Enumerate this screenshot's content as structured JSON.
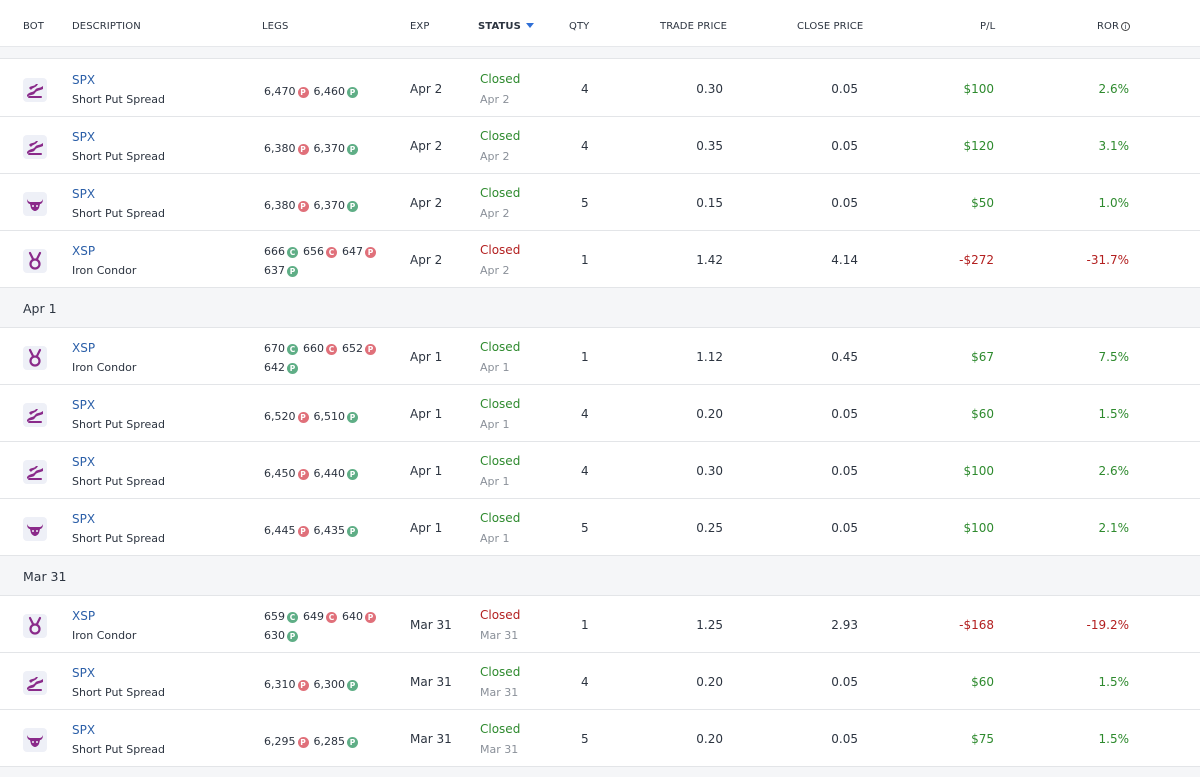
{
  "colors": {
    "symbol": "#2b5fa8",
    "closed_win": "#2e8a2e",
    "closed_loss": "#b32020",
    "pl_gain": "#2e8a2e",
    "pl_loss": "#b32020",
    "put_tag": "#e0707a",
    "put_long_tag": "#5fae86",
    "call_tag": "#e0707a",
    "call_long_tag": "#5fae86",
    "bot_icon": "#8a2a8a"
  },
  "header": {
    "bot": "BOT",
    "description": "DESCRIPTION",
    "legs": "LEGS",
    "exp": "EXP",
    "status": "STATUS",
    "qty": "QTY",
    "trade_price": "TRADE PRICE",
    "close_price": "CLOSE PRICE",
    "pl": "P/L",
    "ror": "ROR"
  },
  "groups": [
    {
      "label": "Apr 1"
    },
    {
      "label": "Mar 31"
    }
  ],
  "rows": [
    {
      "bot_icon": "wave-bot-icon",
      "symbol": "SPX",
      "strategy": "Short Put Spread",
      "legs": [
        {
          "strike": "6,470",
          "tag": "P",
          "short": true
        },
        {
          "strike": "6,460",
          "tag": "P",
          "short": false
        }
      ],
      "exp": "Apr 2",
      "status": "Closed",
      "status_date": "Apr 2",
      "win": true,
      "qty": "4",
      "trade_price": "0.30",
      "close_price": "0.05",
      "pl": "$100",
      "ror": "2.6%"
    },
    {
      "bot_icon": "wave-bot-icon",
      "symbol": "SPX",
      "strategy": "Short Put Spread",
      "legs": [
        {
          "strike": "6,380",
          "tag": "P",
          "short": true
        },
        {
          "strike": "6,370",
          "tag": "P",
          "short": false
        }
      ],
      "exp": "Apr 2",
      "status": "Closed",
      "status_date": "Apr 2",
      "win": true,
      "qty": "4",
      "trade_price": "0.35",
      "close_price": "0.05",
      "pl": "$120",
      "ror": "3.1%"
    },
    {
      "bot_icon": "bull-bot-icon",
      "symbol": "SPX",
      "strategy": "Short Put Spread",
      "legs": [
        {
          "strike": "6,380",
          "tag": "P",
          "short": true
        },
        {
          "strike": "6,370",
          "tag": "P",
          "short": false
        }
      ],
      "exp": "Apr 2",
      "status": "Closed",
      "status_date": "Apr 2",
      "win": true,
      "qty": "5",
      "trade_price": "0.15",
      "close_price": "0.05",
      "pl": "$50",
      "ror": "1.0%"
    },
    {
      "bot_icon": "medal-bot-icon",
      "symbol": "XSP",
      "strategy": "Iron Condor",
      "legs": [
        {
          "strike": "666",
          "tag": "C",
          "short": false
        },
        {
          "strike": "656",
          "tag": "C",
          "short": true
        },
        {
          "strike": "647",
          "tag": "P",
          "short": true
        },
        {
          "strike": "637",
          "tag": "P",
          "short": false
        }
      ],
      "exp": "Apr 2",
      "status": "Closed",
      "status_date": "Apr 2",
      "win": false,
      "qty": "1",
      "trade_price": "1.42",
      "close_price": "4.14",
      "pl": "-$272",
      "ror": "-31.7%"
    },
    {
      "group": "Apr 1"
    },
    {
      "bot_icon": "medal-bot-icon",
      "symbol": "XSP",
      "strategy": "Iron Condor",
      "legs": [
        {
          "strike": "670",
          "tag": "C",
          "short": false
        },
        {
          "strike": "660",
          "tag": "C",
          "short": true
        },
        {
          "strike": "652",
          "tag": "P",
          "short": true
        },
        {
          "strike": "642",
          "tag": "P",
          "short": false
        }
      ],
      "exp": "Apr 1",
      "status": "Closed",
      "status_date": "Apr 1",
      "win": true,
      "qty": "1",
      "trade_price": "1.12",
      "close_price": "0.45",
      "pl": "$67",
      "ror": "7.5%"
    },
    {
      "bot_icon": "wave-bot-icon",
      "symbol": "SPX",
      "strategy": "Short Put Spread",
      "legs": [
        {
          "strike": "6,520",
          "tag": "P",
          "short": true
        },
        {
          "strike": "6,510",
          "tag": "P",
          "short": false
        }
      ],
      "exp": "Apr 1",
      "status": "Closed",
      "status_date": "Apr 1",
      "win": true,
      "qty": "4",
      "trade_price": "0.20",
      "close_price": "0.05",
      "pl": "$60",
      "ror": "1.5%"
    },
    {
      "bot_icon": "wave-bot-icon",
      "symbol": "SPX",
      "strategy": "Short Put Spread",
      "legs": [
        {
          "strike": "6,450",
          "tag": "P",
          "short": true
        },
        {
          "strike": "6,440",
          "tag": "P",
          "short": false
        }
      ],
      "exp": "Apr 1",
      "status": "Closed",
      "status_date": "Apr 1",
      "win": true,
      "qty": "4",
      "trade_price": "0.30",
      "close_price": "0.05",
      "pl": "$100",
      "ror": "2.6%"
    },
    {
      "bot_icon": "bull-bot-icon",
      "symbol": "SPX",
      "strategy": "Short Put Spread",
      "legs": [
        {
          "strike": "6,445",
          "tag": "P",
          "short": true
        },
        {
          "strike": "6,435",
          "tag": "P",
          "short": false
        }
      ],
      "exp": "Apr 1",
      "status": "Closed",
      "status_date": "Apr 1",
      "win": true,
      "qty": "5",
      "trade_price": "0.25",
      "close_price": "0.05",
      "pl": "$100",
      "ror": "2.1%"
    },
    {
      "group": "Mar 31"
    },
    {
      "bot_icon": "medal-bot-icon",
      "symbol": "XSP",
      "strategy": "Iron Condor",
      "legs": [
        {
          "strike": "659",
          "tag": "C",
          "short": false
        },
        {
          "strike": "649",
          "tag": "C",
          "short": true
        },
        {
          "strike": "640",
          "tag": "P",
          "short": true
        },
        {
          "strike": "630",
          "tag": "P",
          "short": false
        }
      ],
      "exp": "Mar 31",
      "status": "Closed",
      "status_date": "Mar 31",
      "win": false,
      "qty": "1",
      "trade_price": "1.25",
      "close_price": "2.93",
      "pl": "-$168",
      "ror": "-19.2%"
    },
    {
      "bot_icon": "wave-bot-icon",
      "symbol": "SPX",
      "strategy": "Short Put Spread",
      "legs": [
        {
          "strike": "6,310",
          "tag": "P",
          "short": true
        },
        {
          "strike": "6,300",
          "tag": "P",
          "short": false
        }
      ],
      "exp": "Mar 31",
      "status": "Closed",
      "status_date": "Mar 31",
      "win": true,
      "qty": "4",
      "trade_price": "0.20",
      "close_price": "0.05",
      "pl": "$60",
      "ror": "1.5%"
    },
    {
      "bot_icon": "bull-bot-icon",
      "symbol": "SPX",
      "strategy": "Short Put Spread",
      "legs": [
        {
          "strike": "6,295",
          "tag": "P",
          "short": true
        },
        {
          "strike": "6,285",
          "tag": "P",
          "short": false
        }
      ],
      "exp": "Mar 31",
      "status": "Closed",
      "status_date": "Mar 31",
      "win": true,
      "qty": "5",
      "trade_price": "0.20",
      "close_price": "0.05",
      "pl": "$75",
      "ror": "1.5%"
    }
  ]
}
